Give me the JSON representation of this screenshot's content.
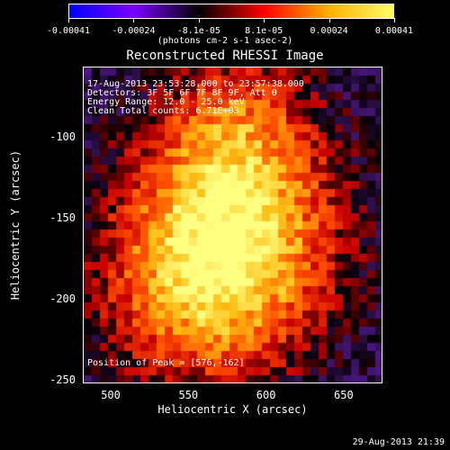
{
  "colorbar": {
    "ticks": [
      "-0.00041",
      "-0.00024",
      "-8.1e-05",
      "8.1e-05",
      "0.00024",
      "0.00041"
    ],
    "unit": "(photons cm-2 s-1 asec-2)",
    "colors": [
      "#0000ff",
      "#7a00ff",
      "#000000",
      "#ff0000",
      "#ffb000",
      "#ffff66"
    ]
  },
  "title": "Reconstructed RHESSI Image",
  "annotation": {
    "time": "17-Aug-2013 23:53:28.000 to 23:57:38.000",
    "detectors": "Detectors: 3F 5F 6F 7F 8F 9F, Att 0",
    "energy": "Energy Range: 12.0 - 25.0 keV",
    "clean": "Clean     Total counts: 6.71E+03",
    "peak": "Position of Peak = [576,-162]"
  },
  "chart_data": {
    "type": "heatmap",
    "xlabel": "Heliocentric X (arcsec)",
    "ylabel": "Heliocentric Y (arcsec)",
    "xlim": [
      482,
      675
    ],
    "ylim": [
      -252,
      -57
    ],
    "xticks": [
      "500",
      "550",
      "600",
      "650"
    ],
    "yticks": [
      "-100",
      "-150",
      "-200",
      "-250"
    ],
    "color_range": [
      -0.00041,
      0.00041
    ],
    "peak": [
      576,
      -162
    ]
  },
  "timestamp": "29-Aug-2013 21:39"
}
